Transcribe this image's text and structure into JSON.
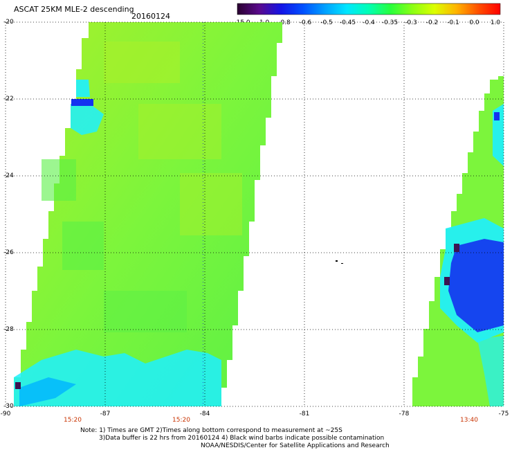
{
  "header": {
    "title": "ASCAT 25KM MLE-2 descending",
    "date": "20160124"
  },
  "colorbar": {
    "labels": [
      "-15.0",
      "-1.0",
      "-0.8",
      "-0.6",
      "-0.5",
      "-0.45",
      "-0.4",
      "-0.35",
      "-0.3",
      "-0.2",
      "-0.1",
      "0.0",
      "1.0"
    ],
    "colors": [
      "#2a0030",
      "#5a0a8c",
      "#1414e6",
      "#0050ff",
      "#00a0ff",
      "#00e6ff",
      "#00ffb4",
      "#28ff3c",
      "#8cff14",
      "#dcff00",
      "#ffb400",
      "#ff5000",
      "#ff0000"
    ]
  },
  "map": {
    "lat_labels": [
      "-20",
      "-22",
      "-24",
      "-26",
      "-28",
      "-30"
    ],
    "lon_labels": [
      "-90",
      "-87",
      "-84",
      "-81",
      "-78",
      "-75"
    ],
    "time_labels": [
      "15:20",
      "15:20",
      "13:40"
    ],
    "colors": {
      "base_green": "#7cf53c",
      "light_green": "#a8f02a",
      "green2": "#5af046",
      "cyan": "#1ef0ff",
      "lightblue": "#00b4ff",
      "blue": "#1432f0",
      "purple": "#3c1450"
    }
  },
  "notes": {
    "line1": "Note: 1) Times are GMT 2)Times along bottom correspond to measurement at ~25S",
    "line2": "3)Data buffer is 22 hrs from 20160124 4) Black wind barbs indicate possible contamination",
    "line3": "NOAA/NESDIS/Center for Satellite Applications and Research"
  }
}
